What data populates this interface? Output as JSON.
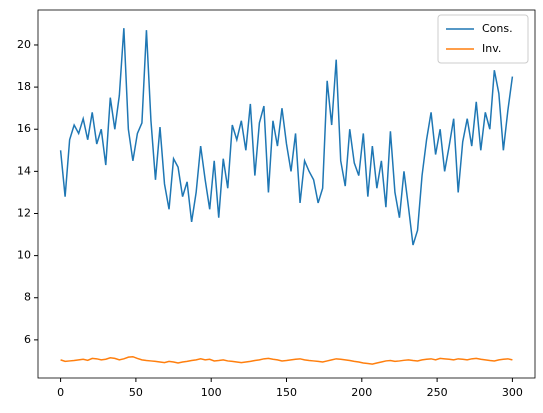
{
  "chart_data": {
    "type": "line",
    "x": [
      0,
      3,
      6,
      9,
      12,
      15,
      18,
      21,
      24,
      27,
      30,
      33,
      36,
      39,
      42,
      45,
      48,
      51,
      54,
      57,
      60,
      63,
      66,
      69,
      72,
      75,
      78,
      81,
      84,
      87,
      90,
      93,
      96,
      99,
      102,
      105,
      108,
      111,
      114,
      117,
      120,
      123,
      126,
      129,
      132,
      135,
      138,
      141,
      144,
      147,
      150,
      153,
      156,
      159,
      162,
      165,
      168,
      171,
      174,
      177,
      180,
      183,
      186,
      189,
      192,
      195,
      198,
      201,
      204,
      207,
      210,
      213,
      216,
      219,
      222,
      225,
      228,
      231,
      234,
      237,
      240,
      243,
      246,
      249,
      252,
      255,
      258,
      261,
      264,
      267,
      270,
      273,
      276,
      279,
      282,
      285,
      288,
      291,
      294,
      297,
      300
    ],
    "series": [
      {
        "name": "Cons.",
        "color": "#1f77b4",
        "values": [
          15,
          12.8,
          15.5,
          16.2,
          15.8,
          16.5,
          15.5,
          16.8,
          15.3,
          16,
          14.3,
          17.5,
          16,
          17.6,
          20.8,
          16,
          14.5,
          15.8,
          16.3,
          20.7,
          16.4,
          13.6,
          16.1,
          13.4,
          12.2,
          14.6,
          14.2,
          12.8,
          13.5,
          11.6,
          13.0,
          15.2,
          13.6,
          12.2,
          14.5,
          11.8,
          14.6,
          13.2,
          16.2,
          15.5,
          16.4,
          15.0,
          17.2,
          13.8,
          16.3,
          17.1,
          13.0,
          16.4,
          15.2,
          17.0,
          15.3,
          14.0,
          15.8,
          12.5,
          14.5,
          14.0,
          13.6,
          12.5,
          13.2,
          18.3,
          16.2,
          19.3,
          14.5,
          13.3,
          16.0,
          14.4,
          13.8,
          15.8,
          12.8,
          15.2,
          13.2,
          14.5,
          12.3,
          15.9,
          13.0,
          11.8,
          14.0,
          12.3,
          10.5,
          11.2,
          13.8,
          15.5,
          16.8,
          14.8,
          16.0,
          14.0,
          15.2,
          16.5,
          13.0,
          15.4,
          16.5,
          15.2,
          17.3,
          15.0,
          16.8,
          16.0,
          18.8,
          17.7,
          15.0,
          16.9,
          18.5
        ]
      },
      {
        "name": "Inv.",
        "color": "#ff7f0e",
        "values": [
          5.05,
          4.98,
          5.0,
          5.02,
          5.05,
          5.08,
          5.03,
          5.12,
          5.1,
          5.05,
          5.08,
          5.15,
          5.12,
          5.05,
          5.1,
          5.18,
          5.2,
          5.12,
          5.05,
          5.02,
          5.0,
          4.98,
          4.95,
          4.92,
          4.98,
          4.95,
          4.9,
          4.95,
          4.98,
          5.02,
          5.05,
          5.1,
          5.05,
          5.08,
          5.0,
          5.02,
          5.05,
          5.0,
          4.98,
          4.95,
          4.92,
          4.95,
          4.98,
          5.02,
          5.05,
          5.1,
          5.12,
          5.08,
          5.05,
          5.0,
          5.02,
          5.05,
          5.08,
          5.1,
          5.05,
          5.02,
          5.0,
          4.98,
          4.95,
          5.0,
          5.05,
          5.1,
          5.08,
          5.05,
          5.02,
          4.98,
          4.95,
          4.9,
          4.88,
          4.85,
          4.9,
          4.95,
          5.0,
          5.02,
          4.98,
          5.0,
          5.03,
          5.05,
          5.02,
          5.0,
          5.05,
          5.08,
          5.1,
          5.05,
          5.12,
          5.1,
          5.08,
          5.05,
          5.1,
          5.08,
          5.05,
          5.1,
          5.12,
          5.08,
          5.05,
          5.02,
          5.0,
          5.05,
          5.08,
          5.1,
          5.05
        ]
      }
    ],
    "xlim": [
      -15,
      315
    ],
    "ylim": [
      4.19,
      21.66
    ],
    "xticks": [
      0,
      50,
      100,
      150,
      200,
      250,
      300
    ],
    "yticks": [
      6,
      8,
      10,
      12,
      14,
      16,
      18,
      20
    ],
    "legend": "upper right"
  }
}
